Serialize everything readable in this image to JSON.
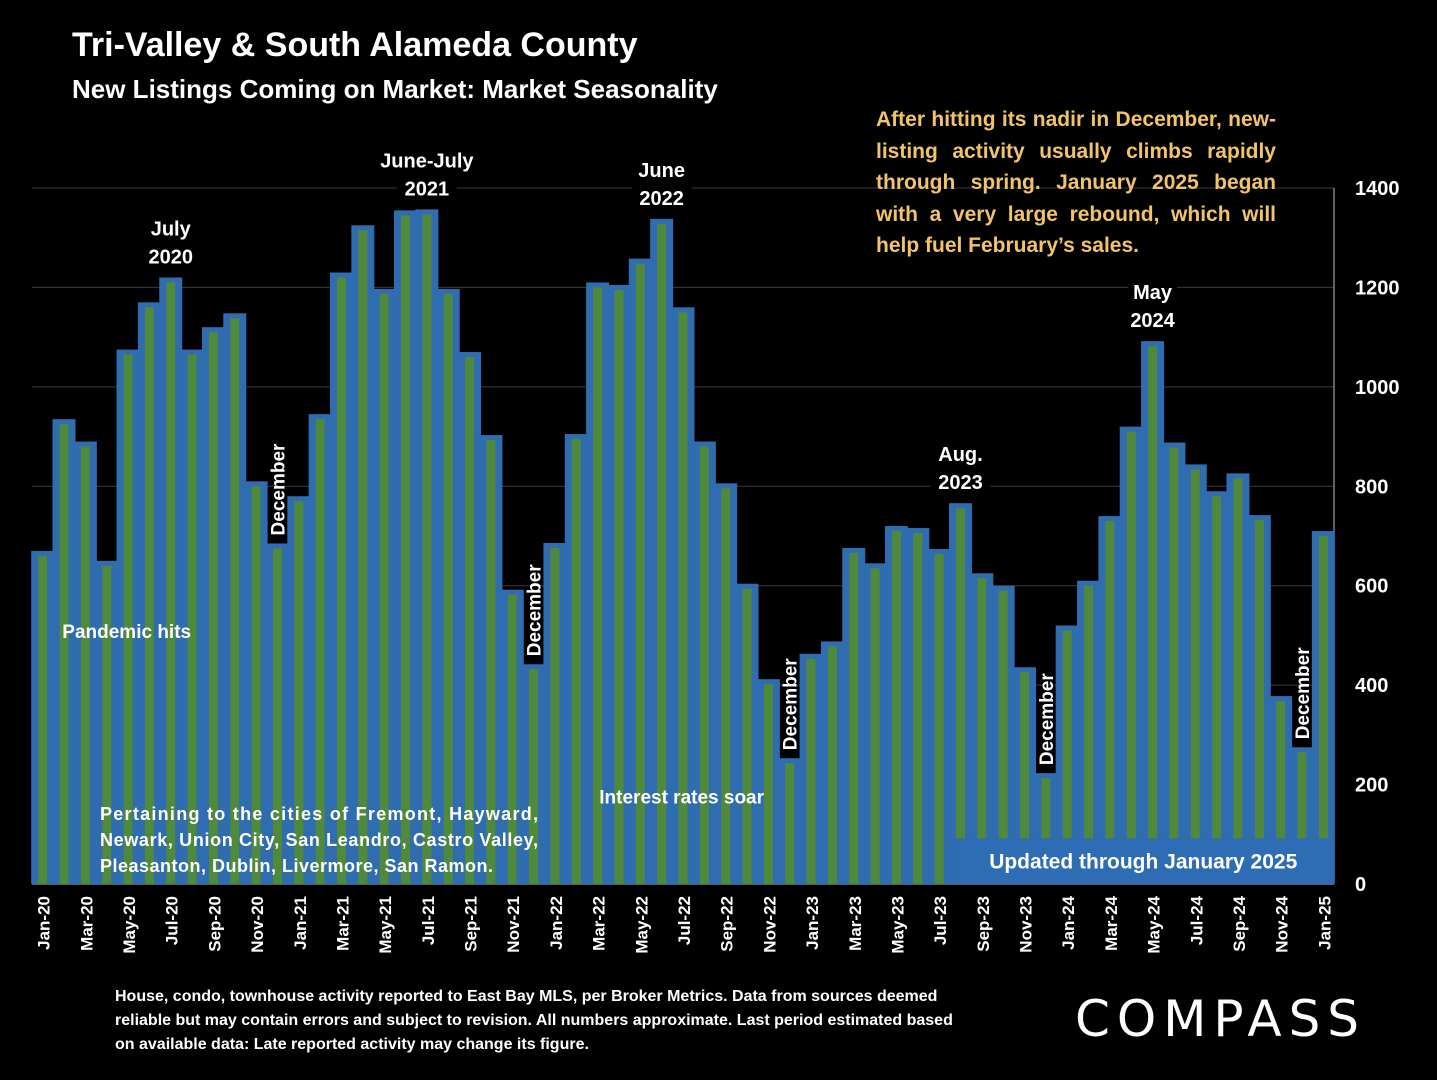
{
  "title": "Tri-Valley & South Alameda County",
  "subtitle": "New Listings Coming on Market: Market Seasonality",
  "callout": "After hitting its nadir in December, new-listing activity usually climbs rapidly through spring. January 2025 began with a very  large rebound, which will help fuel February’s sales.",
  "footnote": "House, condo, townhouse activity reported to East Bay MLS, per Broker Metrics. Data from sources deemed reliable but may contain errors and subject to revision. All numbers approximate. Last period estimated based on available data: Late reported activity may change its figure.",
  "logo": "COMPASS",
  "colors": {
    "bar": "#2F6DB0",
    "bar_core": "#4F8A3C",
    "callout": "#F2C46A",
    "update_box": "#2E6DB4",
    "background": "#000000"
  },
  "chart_data": {
    "type": "bar",
    "x": [
      "Jan-20",
      "Feb-20",
      "Mar-20",
      "Apr-20",
      "May-20",
      "Jun-20",
      "Jul-20",
      "Aug-20",
      "Sep-20",
      "Oct-20",
      "Nov-20",
      "Dec-20",
      "Jan-21",
      "Feb-21",
      "Mar-21",
      "Apr-21",
      "May-21",
      "Jun-21",
      "Jul-21",
      "Aug-21",
      "Sep-21",
      "Oct-21",
      "Nov-21",
      "Dec-21",
      "Jan-22",
      "Feb-22",
      "Mar-22",
      "Apr-22",
      "May-22",
      "Jun-22",
      "Jul-22",
      "Aug-22",
      "Sep-22",
      "Oct-22",
      "Nov-22",
      "Dec-22",
      "Jan-23",
      "Feb-23",
      "Mar-23",
      "Apr-23",
      "May-23",
      "Jun-23",
      "Jul-23",
      "Aug-23",
      "Sep-23",
      "Oct-23",
      "Nov-23",
      "Dec-23",
      "Jan-24",
      "Feb-24",
      "Mar-24",
      "Apr-24",
      "May-24",
      "Jun-24",
      "Jul-24",
      "Aug-24",
      "Sep-24",
      "Oct-24",
      "Nov-24",
      "Dec-24",
      "Jan-25"
    ],
    "values": [
      670,
      935,
      890,
      650,
      1075,
      1170,
      1220,
      1075,
      1120,
      1148,
      810,
      685,
      780,
      945,
      1230,
      1325,
      1197,
      1355,
      1357,
      1197,
      1070,
      903,
      592,
      442,
      686,
      905,
      1210,
      1205,
      1258,
      1338,
      1160,
      890,
      806,
      604,
      412,
      253,
      463,
      488,
      676,
      645,
      720,
      716,
      674,
      766,
      625,
      600,
      436,
      223,
      520,
      610,
      740,
      920,
      1092,
      888,
      844,
      790,
      826,
      742,
      378,
      275,
      710
    ],
    "tick_labels": [
      "Jan-20",
      "Mar-20",
      "May-20",
      "Jul-20",
      "Sep-20",
      "Nov-20",
      "Jan-21",
      "Mar-21",
      "May-21",
      "Jul-21",
      "Sep-21",
      "Nov-21",
      "Jan-22",
      "Mar-22",
      "May-22",
      "Jul-22",
      "Sep-22",
      "Nov-22",
      "Jan-23",
      "Mar-23",
      "May-23",
      "Jul-23",
      "Sep-23",
      "Nov-23",
      "Jan-24",
      "Mar-24",
      "May-24",
      "Jul-24",
      "Sep-24",
      "Nov-24",
      "Jan-25"
    ],
    "y_ticks": [
      0,
      200,
      400,
      600,
      800,
      1000,
      1200,
      1400
    ],
    "ylim": [
      0,
      1400
    ],
    "y_axis_side": "right",
    "grid": true,
    "annotations": {
      "peaks": [
        {
          "at": "Jul-20",
          "lines": [
            "July",
            "2020"
          ]
        },
        {
          "at": "Jul-21",
          "lines": [
            "June-July",
            "2021"
          ]
        },
        {
          "at": "Jun-22",
          "lines": [
            "June",
            "2022"
          ]
        },
        {
          "at": "Aug-23",
          "lines": [
            "Aug.",
            "2023"
          ]
        },
        {
          "at": "May-24",
          "lines": [
            "May",
            "2024"
          ]
        }
      ],
      "vertical": [
        {
          "at": "Dec-20",
          "text": "December"
        },
        {
          "at": "Dec-21",
          "text": "December"
        },
        {
          "at": "Dec-22",
          "text": "December"
        },
        {
          "at": "Dec-23",
          "text": "December"
        },
        {
          "at": "Dec-24",
          "text": "December"
        }
      ],
      "notes": [
        {
          "id": "pandemic",
          "text": "Pandemic hits",
          "at": "Apr-20",
          "level": 495
        },
        {
          "id": "rates",
          "text": "Interest rates soar",
          "at": "Jun-22",
          "level": 162
        }
      ],
      "cities_note": [
        "Pertaining to the cities of Fremont, Hayward,",
        "Newark, Union City, San Leandro, Castro Valley,",
        "Pleasanton, Dublin, Livermore, San Ramon."
      ],
      "update_box": "Updated through January 2025"
    }
  }
}
